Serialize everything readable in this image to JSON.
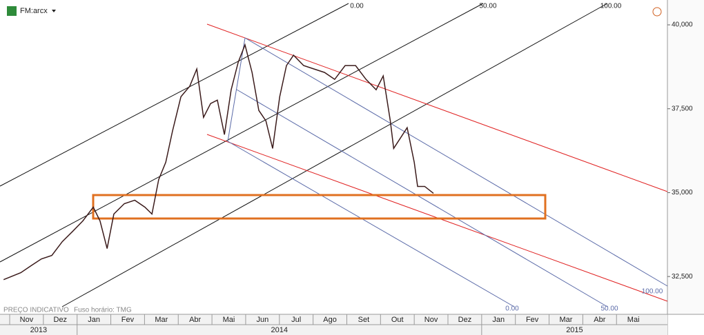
{
  "chart_data": {
    "type": "line",
    "symbol": "FM:arcx",
    "footer_left": "PREÇO INDICATIVO",
    "footer_tz": "Fuso horário: TMG",
    "annotations": [
      "0.00",
      "50.00",
      "100.00",
      "100.00",
      "0.00",
      "50.00"
    ],
    "x": [
      -0.18,
      0.33,
      0.63,
      0.94,
      1.25,
      1.56,
      1.87,
      2.17,
      2.48,
      2.68,
      2.89,
      3.09,
      3.4,
      3.71,
      4.01,
      4.22,
      4.42,
      4.63,
      4.83,
      5.08,
      5.34,
      5.55,
      5.75,
      5.96,
      6.16,
      6.37,
      6.57,
      6.78,
      6.98,
      7.19,
      7.39,
      7.6,
      7.8,
      8.01,
      8.21,
      8.42,
      8.72,
      9.03,
      9.34,
      9.64,
      9.95,
      10.26,
      10.57,
      10.87,
      11.08,
      11.29,
      11.39,
      11.59,
      11.79,
      12.0,
      12.1,
      12.31,
      12.57
    ],
    "series": [
      {
        "color": "#3a1a1a",
        "values": [
          32408,
          32614,
          32819,
          33025,
          33128,
          33539,
          33848,
          34157,
          34568,
          34157,
          33334,
          34362,
          34671,
          34774,
          34568,
          34362,
          35391,
          35906,
          36835,
          37860,
          38169,
          38683,
          37243,
          37655,
          37758,
          36729,
          38066,
          38889,
          39404,
          38581,
          37449,
          37140,
          36317,
          37860,
          38786,
          39095,
          38786,
          38683,
          38581,
          38375,
          38786,
          38786,
          38375,
          38066,
          38478,
          37140,
          36317,
          36626,
          36935,
          35906,
          35185,
          35185,
          34980
        ]
      }
    ],
    "xlim": [
      -0.287,
      19.51
    ],
    "xticks": [
      {
        "value": 0.5,
        "label": "Nov"
      },
      {
        "value": 1.5,
        "label": "Dez"
      },
      {
        "value": 2.5,
        "label": "Jan"
      },
      {
        "value": 3.5,
        "label": "Fev"
      },
      {
        "value": 4.5,
        "label": "Mar"
      },
      {
        "value": 5.5,
        "label": "Abr"
      },
      {
        "value": 6.5,
        "label": "Mai"
      },
      {
        "value": 7.5,
        "label": "Jun"
      },
      {
        "value": 8.5,
        "label": "Jul"
      },
      {
        "value": 9.5,
        "label": "Ago"
      },
      {
        "value": 10.5,
        "label": "Set"
      },
      {
        "value": 11.5,
        "label": "Out"
      },
      {
        "value": 12.5,
        "label": "Nov"
      },
      {
        "value": 13.5,
        "label": "Dez"
      },
      {
        "value": 14.5,
        "label": "Jan"
      },
      {
        "value": 15.5,
        "label": "Fev"
      },
      {
        "value": 16.5,
        "label": "Mar"
      },
      {
        "value": 17.5,
        "label": "Abr"
      },
      {
        "value": 18.5,
        "label": "Mai"
      }
    ],
    "years": [
      "2013",
      "2014",
      "2015"
    ],
    "ylim": [
      31600,
      40740
    ],
    "yticks": [
      {
        "value": 32500,
        "label": "32,500"
      },
      {
        "value": 35000,
        "label": "35,000"
      },
      {
        "value": 37500,
        "label": "37,500"
      },
      {
        "value": 40000,
        "label": "40,000"
      }
    ],
    "grid": false
  }
}
